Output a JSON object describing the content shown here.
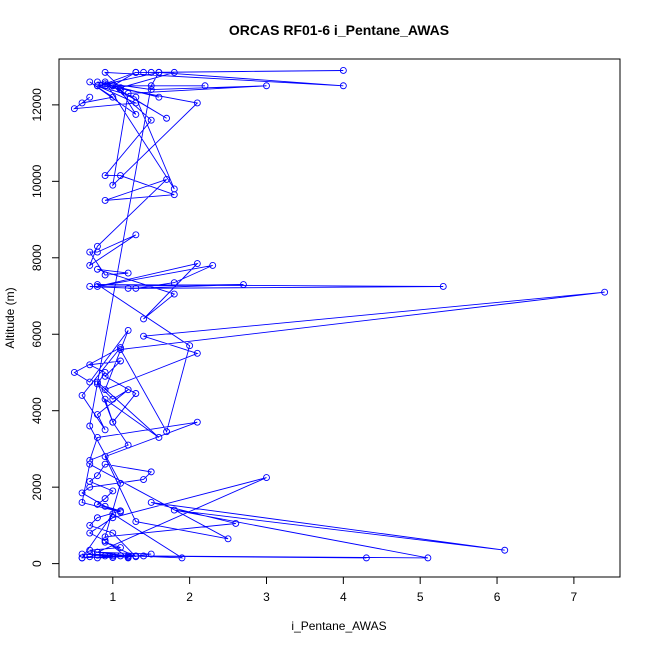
{
  "chart_data": {
    "type": "line",
    "title": "ORCAS RF01-6 i_Pentane_AWAS",
    "xlabel": "i_Pentane_AWAS",
    "ylabel": "Altitude (m)",
    "xlim": [
      0.3,
      7.6
    ],
    "ylim": [
      -350,
      13200
    ],
    "xticks": [
      1,
      2,
      3,
      4,
      5,
      6,
      7
    ],
    "yticks": [
      0,
      2000,
      4000,
      6000,
      8000,
      10000,
      12000
    ],
    "grid": false,
    "series_color": "#0000ff",
    "marker": "open-circle",
    "series": [
      {
        "x": [
          0.6,
          0.7,
          0.8,
          1.0,
          0.9,
          1.2,
          1.5,
          0.8,
          0.7,
          1.1,
          0.9,
          1.3,
          1.0,
          0.7,
          0.8,
          1.1,
          0.9,
          0.6,
          0.7,
          1.4,
          1.5,
          0.9,
          0.8,
          0.7,
          1.0,
          0.9,
          0.8,
          1.1,
          0.6,
          0.7,
          2.5,
          1.3,
          0.9,
          2.1,
          0.8,
          0.7,
          1.2,
          1.0,
          0.9,
          1.6,
          0.8,
          1.0,
          1.3,
          0.9,
          1.1,
          0.7,
          0.9,
          0.8,
          1.0,
          1.2,
          0.8,
          0.9,
          0.6,
          1.1,
          0.5,
          0.7,
          1.2,
          0.9,
          2.1,
          1.4,
          7.4,
          1.1,
          1.7,
          2.0,
          0.8,
          5.3,
          1.2,
          2.7,
          0.7,
          1.3,
          1.8,
          2.3,
          0.8,
          2.1,
          1.4,
          1.8,
          0.8,
          1.2,
          0.9,
          0.7,
          0.8,
          1.3,
          0.7,
          0.8,
          1.7,
          0.9,
          1.8,
          1.1,
          0.9,
          1.5,
          1.0,
          1.7,
          0.9,
          1.8,
          1.3,
          0.8,
          1.3,
          0.5,
          0.7,
          0.6,
          1.0,
          0.7,
          1.3,
          1.1,
          0.9,
          2.1,
          1.0,
          1.2,
          3.0,
          1.5,
          0.8,
          1.6,
          0.9,
          1.3,
          1.0,
          2.2,
          0.8,
          1.6,
          4.0,
          0.9,
          1.1,
          1.8,
          1.3,
          1.5,
          4.0,
          1.4,
          1.6,
          1.5,
          0.7,
          1.1,
          0.9,
          2.6,
          1.5,
          6.1,
          1.8,
          5.1,
          1.4,
          4.3,
          1.2,
          0.8,
          3.0,
          1.0,
          0.7,
          0.9,
          1.2,
          1.1,
          0.6,
          1.0,
          1.9,
          0.7,
          1.3,
          0.8,
          1.0,
          0.6
        ],
        "y": [
          150,
          180,
          220,
          160,
          200,
          170,
          250,
          300,
          350,
          420,
          560,
          180,
          800,
          1000,
          1200,
          1380,
          1500,
          1850,
          2000,
          2200,
          2400,
          2600,
          2300,
          2150,
          1900,
          1700,
          1550,
          1350,
          1600,
          2600,
          650,
          1100,
          2800,
          3700,
          3300,
          2700,
          3100,
          3700,
          4300,
          3300,
          4750,
          3700,
          4450,
          4900,
          5300,
          5200,
          5000,
          4700,
          4300,
          4550,
          3900,
          3500,
          4400,
          5650,
          5000,
          4750,
          6100,
          4550,
          5500,
          5950,
          7100,
          5600,
          3450,
          5700,
          7300,
          7250,
          7200,
          7300,
          7250,
          7200,
          7350,
          7800,
          7250,
          7850,
          6400,
          7050,
          7700,
          7600,
          7550,
          8150,
          8150,
          8600,
          7800,
          8300,
          10050,
          9500,
          9650,
          10150,
          10150,
          11600,
          12500,
          11650,
          12600,
          9800,
          12200,
          12500,
          12050,
          11900,
          12200,
          12050,
          12200,
          12600,
          11750,
          12400,
          12500,
          12050,
          9900,
          12300,
          12500,
          12400,
          12600,
          12200,
          12550,
          12850,
          12500,
          12500,
          12500,
          12850,
          12500,
          12850,
          12450,
          12850,
          12850,
          12850,
          12900,
          12850,
          12850,
          12500,
          3600,
          2100,
          700,
          1050,
          1600,
          350,
          1400,
          150,
          200,
          150,
          200,
          300,
          2250,
          1200,
          800,
          600,
          150,
          200,
          150,
          1300,
          150,
          250,
          200,
          150,
          200,
          250
        ]
      }
    ]
  }
}
